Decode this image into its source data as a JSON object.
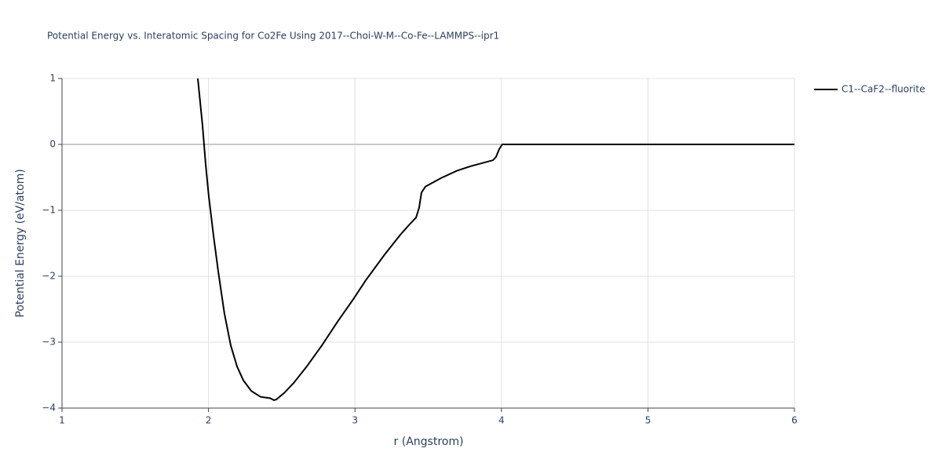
{
  "chart_data": {
    "type": "line",
    "title": "Potential Energy vs. Interatomic Spacing for Co2Fe Using 2017--Choi-W-M--Co-Fe--LAMMPS--ipr1",
    "x_label": "r (Angstrom)",
    "y_label": "Potential Energy (eV/atom)",
    "x": [
      1.927,
      1.959,
      1.981,
      2.002,
      2.034,
      2.066,
      2.109,
      2.152,
      2.195,
      2.238,
      2.292,
      2.356,
      2.42,
      2.447,
      2.463,
      2.517,
      2.581,
      2.667,
      2.774,
      2.881,
      2.988,
      3.074,
      3.203,
      3.31,
      3.374,
      3.417,
      3.438,
      3.454,
      3.481,
      3.588,
      3.696,
      3.792,
      3.942,
      3.963,
      3.985,
      4.006,
      6
    ],
    "series": [
      {
        "name": "C1--CaF2--fluorite",
        "color": "#000000",
        "values": [
          1.0,
          0.29,
          -0.31,
          -0.79,
          -1.38,
          -1.92,
          -2.57,
          -3.05,
          -3.37,
          -3.58,
          -3.74,
          -3.83,
          -3.85,
          -3.88,
          -3.87,
          -3.77,
          -3.62,
          -3.38,
          -3.05,
          -2.69,
          -2.35,
          -2.06,
          -1.67,
          -1.37,
          -1.21,
          -1.11,
          -0.96,
          -0.73,
          -0.64,
          -0.51,
          -0.4,
          -0.33,
          -0.24,
          -0.19,
          -0.07,
          0,
          0
        ]
      }
    ],
    "xlim": [
      1,
      6
    ],
    "xticks": [
      1,
      2,
      3,
      4,
      5,
      6
    ],
    "ylim": [
      -4,
      1
    ],
    "yticks": [
      {
        "value": -4,
        "label": "−4"
      },
      {
        "value": -3,
        "label": "−3"
      },
      {
        "value": -2,
        "label": "−2"
      },
      {
        "value": -1,
        "label": "−1"
      },
      0,
      1
    ],
    "grid": true,
    "legend": "right"
  }
}
